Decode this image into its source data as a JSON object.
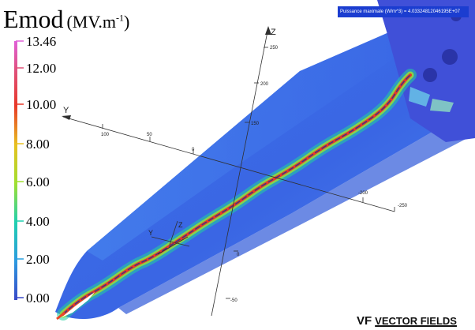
{
  "title": {
    "quantity": "Emod",
    "unit": "(MV.m",
    "unit_exponent": "-1",
    "unit_close": ")"
  },
  "power_banner": "Puissance maximale (W/m^3) = 4.03324812046195E+07",
  "colorbar": {
    "labels": [
      "13.46",
      "12.00",
      "10.00",
      "8.00",
      "6.00",
      "4.00",
      "2.00",
      "0.00"
    ],
    "values": [
      13.46,
      12.0,
      10.0,
      8.0,
      6.0,
      4.0,
      2.0,
      0.0
    ],
    "colors": [
      "#e060d8",
      "#e05070",
      "#e83828",
      "#e8c020",
      "#9ee020",
      "#20d0a0",
      "#28a0e0",
      "#3858e0",
      "#4848d0"
    ]
  },
  "axes": {
    "z_label": "Z",
    "y_label": "Y",
    "x_ticks": [
      "100",
      "50",
      "0",
      "-200",
      "-250"
    ],
    "z_ticks": [
      "250",
      "200",
      "150",
      "0",
      "-50"
    ]
  },
  "logo": {
    "mark": "VF",
    "text": "VECTOR FIELDS"
  },
  "colors": {
    "cone_base": "#3a6ae8",
    "cone_dark": "#2c4fd0",
    "hot_spot": "#ffffff"
  }
}
